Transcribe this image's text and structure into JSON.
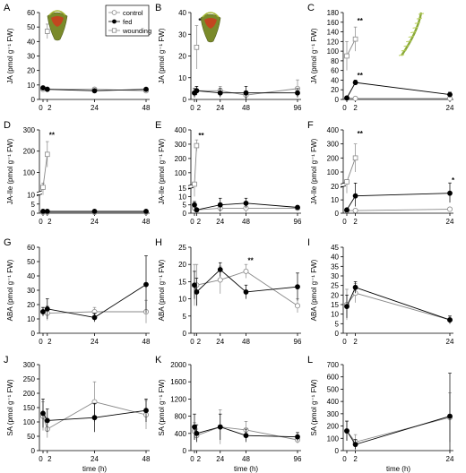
{
  "legend": {
    "entries": [
      {
        "label": "control",
        "marker": "open-circle"
      },
      {
        "label": "fed",
        "marker": "filled-circle"
      },
      {
        "label": "wounding",
        "marker": "open-square"
      }
    ]
  },
  "colors": {
    "control": "#888888",
    "fed": "#000000",
    "wounding": "#888888",
    "axis": "#000000"
  },
  "pictures": [
    {
      "panel": "A",
      "name": "pitcher-plant-photo"
    },
    {
      "panel": "B",
      "name": "pitcher-plant-photo"
    },
    {
      "panel": "C",
      "name": "leaf-photo"
    }
  ],
  "chart_data": [
    {
      "panel_label": "A",
      "type": "line",
      "ylabel": "JA (pmol g⁻¹ FW)",
      "xlabel": "",
      "xlim": [
        0,
        48
      ],
      "ylim": [
        0,
        60
      ],
      "xticks": [
        0,
        2,
        24,
        48
      ],
      "xtick_labels": [
        "0",
        "2",
        "24",
        "48"
      ],
      "yticks": [
        0,
        10,
        20,
        30,
        40,
        50,
        60
      ],
      "series": [
        {
          "name": "control",
          "x": [
            0,
            2,
            24,
            48
          ],
          "y": [
            7,
            7,
            7,
            6
          ],
          "err": [
            1,
            1,
            1,
            1
          ]
        },
        {
          "name": "fed",
          "x": [
            0,
            2,
            24,
            48
          ],
          "y": [
            8,
            7,
            6,
            7
          ],
          "err": [
            1,
            1,
            1,
            1
          ]
        },
        {
          "name": "wounding",
          "x": [
            2
          ],
          "y": [
            47
          ],
          "err": [
            5
          ]
        }
      ],
      "annotations": [
        {
          "x": 2,
          "y": 53,
          "text": "**"
        }
      ]
    },
    {
      "panel_label": "B",
      "type": "line",
      "ylabel": "JA (pmol g⁻¹ FW)",
      "xlabel": "",
      "xlim": [
        0,
        96
      ],
      "ylim": [
        0,
        40
      ],
      "xticks": [
        0,
        2,
        24,
        48,
        96
      ],
      "xtick_labels": [
        "0",
        "2",
        "24",
        "48",
        "96"
      ],
      "yticks": [
        0,
        10,
        20,
        30,
        40
      ],
      "series": [
        {
          "name": "control",
          "x": [
            0,
            2,
            24,
            48,
            96
          ],
          "y": [
            3,
            4,
            4,
            2,
            5
          ],
          "err": [
            2,
            2,
            2,
            2,
            4
          ]
        },
        {
          "name": "fed",
          "x": [
            0,
            2,
            24,
            48,
            96
          ],
          "y": [
            3,
            4,
            3,
            3,
            3
          ],
          "err": [
            2,
            2,
            2,
            3,
            2
          ]
        },
        {
          "name": "wounding",
          "x": [
            2
          ],
          "y": [
            24
          ],
          "err": [
            10
          ]
        }
      ],
      "annotations": [
        {
          "x": 2,
          "y": 35,
          "text": "**"
        }
      ]
    },
    {
      "panel_label": "C",
      "type": "line",
      "ylabel": "JA (pmol g⁻¹ FW)",
      "xlabel": "",
      "xlim": [
        0,
        24
      ],
      "ylim": [
        0,
        180
      ],
      "xticks": [
        0,
        2,
        24
      ],
      "xtick_labels": [
        "0",
        "2",
        "24"
      ],
      "yticks": [
        0,
        20,
        40,
        60,
        80,
        100,
        120,
        140,
        160,
        180
      ],
      "series": [
        {
          "name": "control",
          "x": [
            0,
            2,
            24
          ],
          "y": [
            3,
            2,
            2
          ],
          "err": [
            1,
            1,
            1
          ]
        },
        {
          "name": "fed",
          "x": [
            0,
            2,
            24
          ],
          "y": [
            3,
            35,
            10
          ],
          "err": [
            1,
            5,
            5
          ]
        },
        {
          "name": "wounding",
          "x": [
            0,
            2
          ],
          "y": [
            90,
            125
          ],
          "err": [
            30,
            25
          ]
        }
      ],
      "annotations": [
        {
          "x": 2,
          "y": 158,
          "text": "**"
        },
        {
          "x": 2,
          "y": 45,
          "text": "**"
        }
      ]
    },
    {
      "panel_label": "D",
      "type": "line",
      "ylabel": "JA-Ile (pmol g⁻¹ FW)",
      "xlabel": "",
      "xlim": [
        0,
        48
      ],
      "ylim": [
        0,
        300
      ],
      "yscale": "broken",
      "xticks": [
        0,
        2,
        24,
        48
      ],
      "xtick_labels": [
        "0",
        "2",
        "24",
        "48"
      ],
      "yticks": [
        0,
        5,
        10,
        100,
        200,
        300
      ],
      "series": [
        {
          "name": "control",
          "x": [
            0,
            2,
            24,
            48
          ],
          "y": [
            0.5,
            0.5,
            0.5,
            0.5
          ],
          "err": [
            0.2,
            0.2,
            0.2,
            0.2
          ]
        },
        {
          "name": "fed",
          "x": [
            0,
            2,
            24,
            48
          ],
          "y": [
            1,
            1,
            1,
            1
          ],
          "err": [
            0.2,
            0.2,
            0.2,
            0.2
          ]
        },
        {
          "name": "wounding",
          "x": [
            0,
            2
          ],
          "y": [
            30,
            185
          ],
          "err": [
            20,
            60
          ]
        }
      ],
      "annotations": [
        {
          "x": 2,
          "y": 265,
          "text": "**"
        }
      ]
    },
    {
      "panel_label": "E",
      "type": "line",
      "ylabel": "JA-Ile (pmol g⁻¹ FW)",
      "xlabel": "",
      "xlim": [
        0,
        96
      ],
      "ylim": [
        0,
        400
      ],
      "yscale": "broken",
      "xticks": [
        0,
        2,
        24,
        48,
        96
      ],
      "xtick_labels": [
        "0",
        "2",
        "24",
        "48",
        "96"
      ],
      "yticks": [
        0,
        5,
        10,
        15,
        100,
        200,
        300,
        400
      ],
      "series": [
        {
          "name": "control",
          "x": [
            0,
            2,
            24,
            48,
            96
          ],
          "y": [
            3,
            2,
            3,
            3,
            3
          ],
          "err": [
            1,
            1,
            2,
            3,
            1
          ]
        },
        {
          "name": "fed",
          "x": [
            0,
            2,
            24,
            48,
            96
          ],
          "y": [
            5,
            2,
            5,
            6,
            3.5
          ],
          "err": [
            2,
            1,
            4,
            3,
            1
          ]
        },
        {
          "name": "wounding",
          "x": [
            0,
            2
          ],
          "y": [
            20,
            290
          ],
          "err": [
            10,
            40
          ]
        }
      ],
      "annotations": [
        {
          "x": 2,
          "y": 345,
          "text": "**"
        }
      ]
    },
    {
      "panel_label": "F",
      "type": "line",
      "ylabel": "JA-Ile (pmol g⁻¹ FW)",
      "xlabel": "",
      "xlim": [
        0,
        24
      ],
      "ylim": [
        0,
        400
      ],
      "yscale": "broken",
      "xticks": [
        0,
        2,
        24
      ],
      "xtick_labels": [
        "0",
        "2",
        "24"
      ],
      "yticks": [
        0,
        10,
        20,
        100,
        200,
        300,
        400
      ],
      "series": [
        {
          "name": "control",
          "x": [
            0,
            2,
            24
          ],
          "y": [
            2,
            2,
            3
          ],
          "err": [
            1,
            1,
            1
          ]
        },
        {
          "name": "fed",
          "x": [
            0,
            2,
            24
          ],
          "y": [
            2.5,
            13,
            15
          ],
          "err": [
            1,
            8,
            7
          ]
        },
        {
          "name": "wounding",
          "x": [
            0,
            2
          ],
          "y": [
            30,
            200
          ],
          "err": [
            15,
            100
          ]
        }
      ],
      "annotations": [
        {
          "x": 2,
          "y": 355,
          "text": "**"
        },
        {
          "x": 24,
          "y": 23,
          "text": "*"
        }
      ]
    },
    {
      "panel_label": "G",
      "type": "line",
      "ylabel": "ABA (pmol g⁻¹ FW)",
      "xlabel": "",
      "xlim": [
        0,
        48
      ],
      "ylim": [
        0,
        60
      ],
      "xticks": [
        0,
        2,
        24,
        48
      ],
      "xtick_labels": [
        "0",
        "2",
        "24",
        "48"
      ],
      "yticks": [
        0,
        10,
        20,
        30,
        40,
        50,
        60
      ],
      "series": [
        {
          "name": "control",
          "x": [
            0,
            2,
            24,
            48
          ],
          "y": [
            15,
            14,
            15,
            15
          ],
          "err": [
            3,
            5,
            3,
            8
          ]
        },
        {
          "name": "fed",
          "x": [
            0,
            2,
            24,
            48
          ],
          "y": [
            15,
            17,
            11,
            34
          ],
          "err": [
            3,
            7,
            3,
            20
          ]
        }
      ],
      "annotations": []
    },
    {
      "panel_label": "H",
      "type": "line",
      "ylabel": "ABA (pmol g⁻¹ FW)",
      "xlabel": "",
      "xlim": [
        0,
        96
      ],
      "ylim": [
        0,
        25
      ],
      "xticks": [
        0,
        2,
        24,
        48,
        96
      ],
      "xtick_labels": [
        "0",
        "2",
        "24",
        "48",
        "96"
      ],
      "yticks": [
        0,
        5,
        10,
        15,
        20,
        25
      ],
      "series": [
        {
          "name": "control",
          "x": [
            0,
            2,
            24,
            48,
            96
          ],
          "y": [
            14,
            14,
            15.5,
            18,
            8
          ],
          "err": [
            6,
            6,
            4,
            2,
            2
          ]
        },
        {
          "name": "fed",
          "x": [
            0,
            2,
            24,
            48,
            96
          ],
          "y": [
            14,
            12,
            18.5,
            12,
            13.5
          ],
          "err": [
            4,
            4,
            2,
            2,
            4
          ]
        }
      ],
      "annotations": [
        {
          "x": 48,
          "y": 20.5,
          "text": "**"
        }
      ]
    },
    {
      "panel_label": "I",
      "type": "line",
      "ylabel": "ABA (pmol g⁻¹ FW)",
      "xlabel": "",
      "xlim": [
        0,
        24
      ],
      "ylim": [
        0,
        45
      ],
      "xticks": [
        0,
        2,
        24
      ],
      "xtick_labels": [
        "0",
        "2",
        "24"
      ],
      "yticks": [
        0,
        5,
        10,
        15,
        20,
        25,
        30,
        35,
        40,
        45
      ],
      "series": [
        {
          "name": "control",
          "x": [
            0,
            2,
            24
          ],
          "y": [
            15,
            21,
            7
          ],
          "err": [
            8,
            5,
            2
          ]
        },
        {
          "name": "fed",
          "x": [
            0,
            2,
            24
          ],
          "y": [
            14,
            24,
            7
          ],
          "err": [
            6,
            3,
            2
          ]
        }
      ],
      "annotations": []
    },
    {
      "panel_label": "J",
      "type": "line",
      "ylabel": "SA (pmol g⁻¹ FW)",
      "xlabel": "time (h)",
      "xlim": [
        0,
        48
      ],
      "ylim": [
        0,
        300
      ],
      "xticks": [
        0,
        2,
        24,
        48
      ],
      "xtick_labels": [
        "0",
        "2",
        "24",
        "48"
      ],
      "yticks": [
        0,
        50,
        100,
        150,
        200,
        250,
        300
      ],
      "series": [
        {
          "name": "control",
          "x": [
            0,
            2,
            24,
            48
          ],
          "y": [
            120,
            75,
            170,
            125
          ],
          "err": [
            50,
            30,
            70,
            50
          ]
        },
        {
          "name": "fed",
          "x": [
            0,
            2,
            24,
            48
          ],
          "y": [
            130,
            105,
            115,
            140
          ],
          "err": [
            50,
            40,
            50,
            40
          ]
        }
      ],
      "annotations": []
    },
    {
      "panel_label": "K",
      "type": "line",
      "ylabel": "SA (pmol g⁻¹ FW)",
      "xlabel": "time (h)",
      "xlim": [
        0,
        96
      ],
      "ylim": [
        0,
        2000
      ],
      "xticks": [
        0,
        2,
        24,
        48,
        96
      ],
      "xtick_labels": [
        "0",
        "2",
        "24",
        "48",
        "96"
      ],
      "yticks": [
        0,
        400,
        800,
        1200,
        1600,
        2000
      ],
      "series": [
        {
          "name": "control",
          "x": [
            0,
            2,
            24,
            48,
            96
          ],
          "y": [
            450,
            350,
            550,
            480,
            250
          ],
          "err": [
            200,
            150,
            400,
            200,
            80
          ]
        },
        {
          "name": "fed",
          "x": [
            0,
            2,
            24,
            48,
            96
          ],
          "y": [
            550,
            400,
            550,
            350,
            320
          ],
          "err": [
            300,
            200,
            300,
            150,
            100
          ]
        }
      ],
      "annotations": []
    },
    {
      "panel_label": "L",
      "type": "line",
      "ylabel": "SA (pmol g⁻¹ FW)",
      "xlabel": "time (h)",
      "xlim": [
        0,
        24
      ],
      "ylim": [
        0,
        700
      ],
      "xticks": [
        0,
        2,
        24
      ],
      "xtick_labels": [
        "0",
        "2",
        "24"
      ],
      "yticks": [
        0,
        100,
        200,
        300,
        400,
        500,
        600,
        700
      ],
      "series": [
        {
          "name": "control",
          "x": [
            0,
            2,
            24
          ],
          "y": [
            160,
            70,
            270
          ],
          "err": [
            80,
            60,
            200
          ]
        },
        {
          "name": "fed",
          "x": [
            0,
            2,
            24
          ],
          "y": [
            160,
            50,
            280
          ],
          "err": [
            80,
            40,
            350
          ]
        }
      ],
      "annotations": []
    }
  ]
}
